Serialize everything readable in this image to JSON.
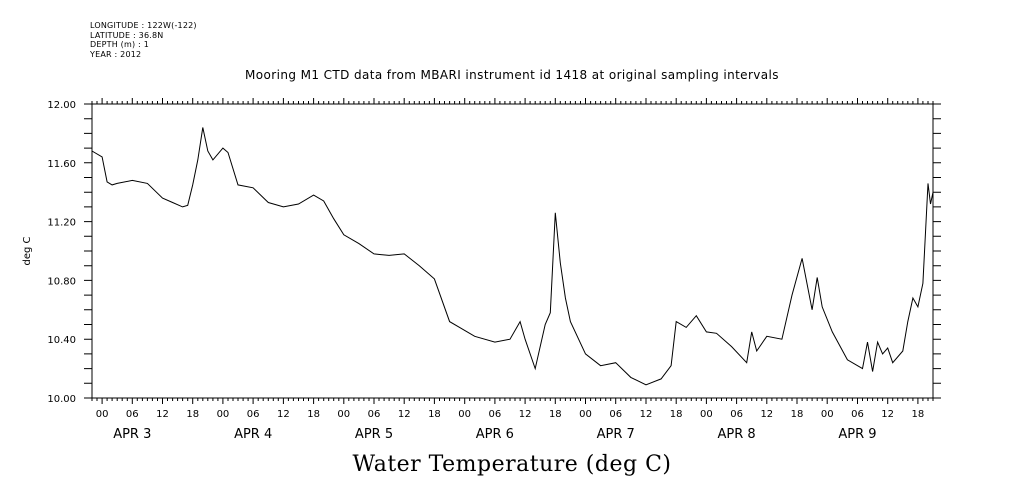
{
  "header": {
    "lines": [
      "LONGITUDE : 122W(-122)",
      "LATITUDE : 36.8N",
      "DEPTH (m) : 1",
      "YEAR : 2012"
    ]
  },
  "chart_data": {
    "type": "line",
    "title": "Mooring M1 CTD data from MBARI instrument id 1418 at original sampling intervals",
    "xlabel": "Water Temperature (deg C)",
    "ylabel": "deg C",
    "ylim": [
      10.0,
      12.0
    ],
    "yticks": [
      "10.00",
      "10.40",
      "10.80",
      "11.20",
      "11.60",
      "12.00"
    ],
    "xlim": [
      "2012-04-02 22:00",
      "2012-04-09 21:00"
    ],
    "xticks_hours": [
      "00",
      "06",
      "12",
      "18",
      "00",
      "06",
      "12",
      "18",
      "00",
      "06",
      "12",
      "18",
      "00",
      "06",
      "12",
      "18",
      "00",
      "06",
      "12",
      "18",
      "00",
      "06",
      "12",
      "18",
      "00",
      "06",
      "12",
      "18"
    ],
    "day_labels": [
      "APR 3",
      "APR 4",
      "APR 5",
      "APR 6",
      "APR 7",
      "APR 8",
      "APR 9"
    ],
    "grid": false,
    "series": [
      {
        "x": [
          "2012-04-02 22:00",
          "2012-04-03 00:00",
          "2012-04-03 01:00",
          "2012-04-03 02:00",
          "2012-04-03 03:00",
          "2012-04-03 06:00",
          "2012-04-03 09:00",
          "2012-04-03 12:00",
          "2012-04-03 14:00",
          "2012-04-03 16:00",
          "2012-04-03 17:00",
          "2012-04-03 18:00",
          "2012-04-03 19:00",
          "2012-04-03 20:00",
          "2012-04-03 21:00",
          "2012-04-03 22:00",
          "2012-04-04 00:00",
          "2012-04-04 01:00",
          "2012-04-04 03:00",
          "2012-04-04 06:00",
          "2012-04-04 09:00",
          "2012-04-04 12:00",
          "2012-04-04 15:00",
          "2012-04-04 18:00",
          "2012-04-04 20:00",
          "2012-04-04 22:00",
          "2012-04-05 00:00",
          "2012-04-05 03:00",
          "2012-04-05 06:00",
          "2012-04-05 09:00",
          "2012-04-05 12:00",
          "2012-04-05 15:00",
          "2012-04-05 18:00",
          "2012-04-05 21:00",
          "2012-04-05 23:00",
          "2012-04-06 00:00",
          "2012-04-06 02:00",
          "2012-04-06 06:00",
          "2012-04-06 09:00",
          "2012-04-06 11:00",
          "2012-04-06 12:00",
          "2012-04-06 14:00",
          "2012-04-06 16:00",
          "2012-04-06 17:00",
          "2012-04-06 18:00",
          "2012-04-06 19:00",
          "2012-04-06 20:00",
          "2012-04-06 21:00",
          "2012-04-07 00:00",
          "2012-04-07 03:00",
          "2012-04-07 06:00",
          "2012-04-07 09:00",
          "2012-04-07 12:00",
          "2012-04-07 15:00",
          "2012-04-07 17:00",
          "2012-04-07 18:00",
          "2012-04-07 20:00",
          "2012-04-07 22:00",
          "2012-04-08 00:00",
          "2012-04-08 02:00",
          "2012-04-08 05:00",
          "2012-04-08 08:00",
          "2012-04-08 09:00",
          "2012-04-08 10:00",
          "2012-04-08 12:00",
          "2012-04-08 15:00",
          "2012-04-08 17:00",
          "2012-04-08 19:00",
          "2012-04-08 21:00",
          "2012-04-08 22:00",
          "2012-04-08 23:00",
          "2012-04-09 01:00",
          "2012-04-09 04:00",
          "2012-04-09 07:00",
          "2012-04-09 08:00",
          "2012-04-09 09:00",
          "2012-04-09 10:00",
          "2012-04-09 11:00",
          "2012-04-09 12:00",
          "2012-04-09 13:00",
          "2012-04-09 15:00",
          "2012-04-09 16:00",
          "2012-04-09 17:00",
          "2012-04-09 18:00",
          "2012-04-09 19:00",
          "2012-04-09 20:00",
          "2012-04-09 20:30",
          "2012-04-09 21:00"
        ],
        "values": [
          11.68,
          11.64,
          11.47,
          11.45,
          11.46,
          11.48,
          11.46,
          11.36,
          11.33,
          11.3,
          11.31,
          11.45,
          11.62,
          11.84,
          11.68,
          11.62,
          11.7,
          11.67,
          11.45,
          11.43,
          11.33,
          11.3,
          11.32,
          11.38,
          11.34,
          11.22,
          11.11,
          11.05,
          10.98,
          10.97,
          10.98,
          10.9,
          10.81,
          10.52,
          10.48,
          10.46,
          10.42,
          10.38,
          10.4,
          10.52,
          10.4,
          10.2,
          10.5,
          10.58,
          11.26,
          10.92,
          10.68,
          10.52,
          10.3,
          10.22,
          10.24,
          10.14,
          10.09,
          10.13,
          10.22,
          10.52,
          10.48,
          10.56,
          10.45,
          10.44,
          10.35,
          10.24,
          10.45,
          10.32,
          10.42,
          10.4,
          10.7,
          10.95,
          10.6,
          10.82,
          10.62,
          10.45,
          10.26,
          10.2,
          10.38,
          10.18,
          10.38,
          10.3,
          10.34,
          10.24,
          10.32,
          10.52,
          10.68,
          10.62,
          10.78,
          11.46,
          11.32,
          11.4
        ]
      }
    ]
  }
}
